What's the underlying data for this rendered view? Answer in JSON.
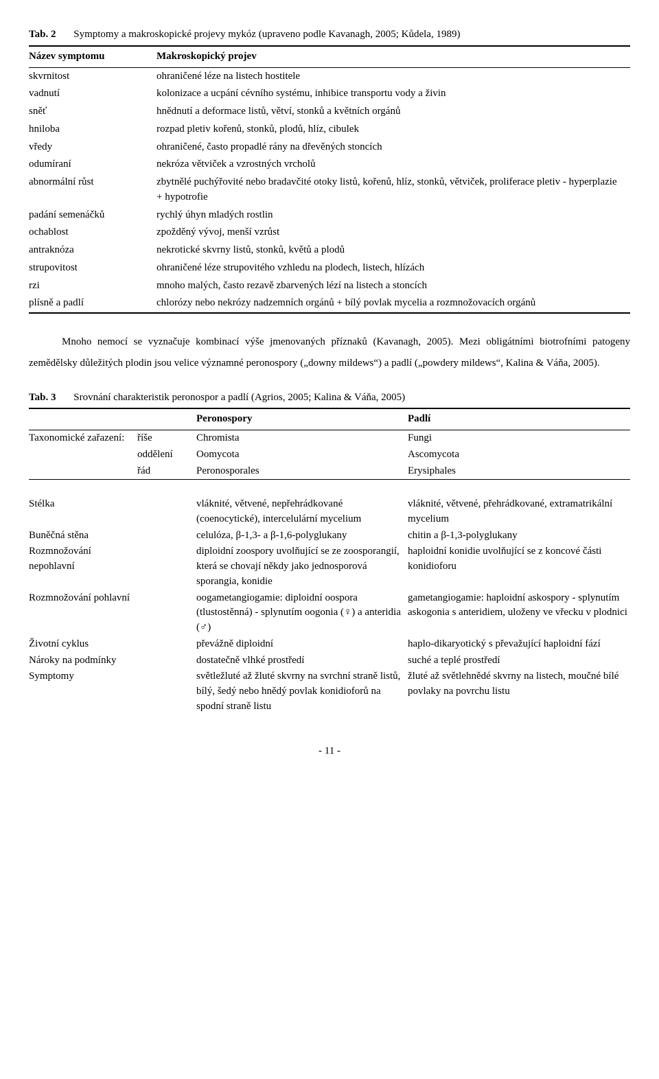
{
  "table2": {
    "label": "Tab. 2",
    "caption": "Symptomy a makroskopické projevy mykóz (upraveno podle Kavanagh, 2005; Kůdela, 1989)",
    "head1": "Název symptomu",
    "head2": "Makroskopický projev",
    "rows": [
      {
        "s": "skvrnitost",
        "p": "ohraničené léze na listech hostitele"
      },
      {
        "s": "vadnutí",
        "p": "kolonizace a ucpání cévního systému, inhibice transportu vody a živin"
      },
      {
        "s": "sněť",
        "p": "hnědnutí a deformace listů, větví, stonků a květních orgánů"
      },
      {
        "s": "hniloba",
        "p": "rozpad pletiv kořenů, stonků, plodů, hlíz, cibulek"
      },
      {
        "s": "vředy",
        "p": "ohraničené, často propadlé rány na dřevěných stoncích"
      },
      {
        "s": "odumíraní",
        "p": "nekróza větviček a vzrostných vrcholů"
      },
      {
        "s": "abnormální růst",
        "p": "zbytnělé puchýřovité nebo bradavčité otoky listů, kořenů, hlíz, stonků, větviček, proliferace pletiv - hyperplazie + hypotrofie"
      },
      {
        "s": "padání semenáčků",
        "p": "rychlý úhyn mladých rostlin"
      },
      {
        "s": "ochablost",
        "p": "zpožděný vývoj, menší vzrůst"
      },
      {
        "s": "antraknóza",
        "p": "nekrotické skvrny listů, stonků, květů a plodů"
      },
      {
        "s": "strupovitost",
        "p": "ohraničené léze strupovitého vzhledu na plodech, listech, hlízách"
      },
      {
        "s": "rzi",
        "p": "mnoho malých, často rezavě zbarvených lézí na listech a stoncích"
      },
      {
        "s": "plísně a padlí",
        "p": "chlorózy nebo nekrózy nadzemních orgánů + bílý povlak mycelia a rozmnožovacích orgánů"
      }
    ]
  },
  "paragraph": "Mnoho nemocí se vyznačuje kombinací výše jmenovaných příznaků (Kavanagh, 2005). Mezi obligátními biotrofními patogeny zemědělsky důležitých plodin jsou velice významné peronospory („downy mildews“) a padlí („powdery mildews“, Kalina & Váňa, 2005).",
  "table3": {
    "label": "Tab. 3",
    "caption": "Srovnání charakteristik peronospor a padlí (Agrios, 2005; Kalina & Váňa, 2005)",
    "head_peron": "Peronospory",
    "head_padli": "Padlí",
    "taxLabel": "Taxonomické zařazení:",
    "tax": [
      {
        "lvl": "říše",
        "a": "Chromista",
        "b": "Fungi"
      },
      {
        "lvl": "oddělení",
        "a": "Oomycota",
        "b": "Ascomycota"
      },
      {
        "lvl": "řád",
        "a": "Peronosporales",
        "b": "Erysiphales"
      }
    ],
    "rows": [
      {
        "k": "Stélka",
        "a": "vláknité, větvené, nepřehrádkované (coenocytické), intercelulární mycelium",
        "b": "vláknité, větvené, přehrádkované, extramatrikální  mycelium"
      },
      {
        "k": "Buněčná stěna",
        "a": "celulóza, β-1,3- a β-1,6-polyglukany",
        "b": "chitin a β-1,3-polyglukany"
      },
      {
        "k": "Rozmnožování nepohlavní",
        "a": "diploidní zoospory uvolňující se ze zoosporangií, která se chovají někdy jako jednosporová sporangia, konidie",
        "b": "haploidní konidie uvolňující se z koncové části konidioforu"
      },
      {
        "k": "Rozmnožování pohlavní",
        "a": "oogametangiogamie: diploidní oospora (tlustostěnná) - splynutím oogonia (♀) a anteridia (♂)",
        "b": "gametangiogamie: haploidní askospory - splynutím askogonia s anteridiem, uloženy ve vřecku v plodnici"
      },
      {
        "k": "Životní cyklus",
        "a": "převážně diploidní",
        "b": "haplo-dikaryotický s převažující haploidní fází"
      },
      {
        "k": "Nároky na podmínky",
        "a": "dostatečně vlhké prostředí",
        "b": "suché a teplé prostředí"
      },
      {
        "k": "Symptomy",
        "a": "světležluté až žluté skvrny na svrchní straně listů, bílý, šedý nebo hnědý povlak konidioforů na spodní straně listu",
        "b": "žluté až světlehnědé skvrny na listech, moučné bílé povlaky na povrchu listu"
      }
    ]
  },
  "pageNumber": "- 11 -"
}
